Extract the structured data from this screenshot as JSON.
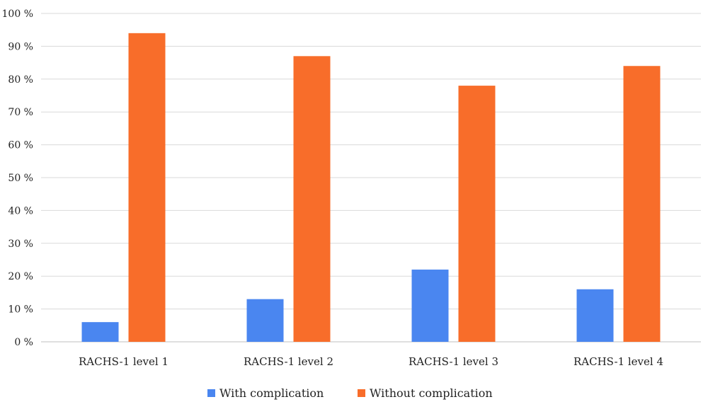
{
  "chart_data": {
    "type": "bar",
    "categories": [
      "RACHS-1 level 1",
      "RACHS-1 level 2",
      "RACHS-1 level 3",
      "RACHS-1 level 4"
    ],
    "series": [
      {
        "name": "With complication",
        "values": [
          6,
          13,
          22,
          16
        ],
        "color": "#4a86f0"
      },
      {
        "name": "Without complication",
        "values": [
          94,
          87,
          78,
          84
        ],
        "color": "#f86d2a"
      }
    ],
    "ylim": [
      0,
      100
    ],
    "yticks": [
      0,
      10,
      20,
      30,
      40,
      50,
      60,
      70,
      80,
      90,
      100
    ],
    "ytick_labels": [
      "0 %",
      "10 %",
      "20 %",
      "30 %",
      "40 %",
      "50 %",
      "60 %",
      "70 %",
      "80 %",
      "90 %",
      "100 %"
    ],
    "grid": true,
    "legend_position": "bottom-center"
  }
}
